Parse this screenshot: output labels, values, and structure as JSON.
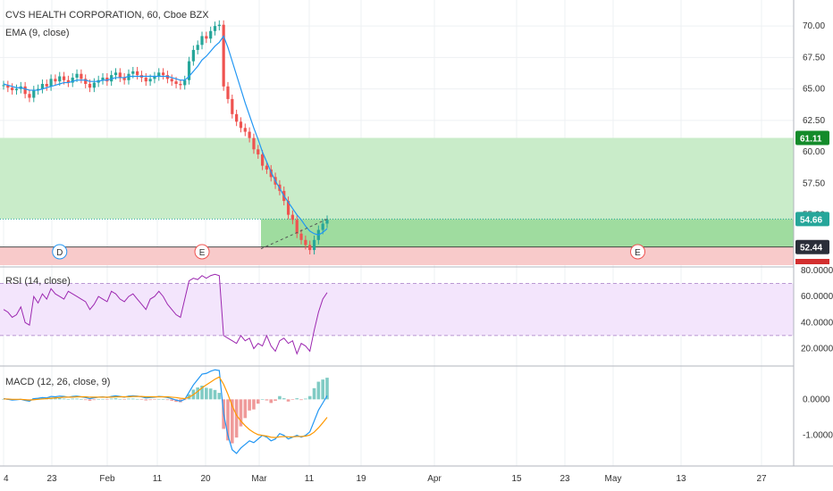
{
  "legend": {
    "symbol": "CVS HEALTH CORPORATION, 60, Cboe BZX",
    "ema": "EMA (9, close)",
    "rsi": "RSI (14, close)",
    "macd": "MACD (12, 26, close, 9)"
  },
  "colors": {
    "up": "#26a69a",
    "down": "#ef5350",
    "ema": "#2196f3",
    "profit_zone": "#c9ecc9",
    "profit_zone_dark": "#9fdc9f",
    "stop_zone": "#f8caca",
    "rsi_line": "#9c27b0",
    "rsi_band": "#f3e5fc",
    "macd_line": "#2196f3",
    "signal_line": "#ff9800",
    "tag_green": "#138b2a",
    "tag_teal": "#26a69a",
    "tag_dark": "#2a2e39"
  },
  "price_tags": [
    {
      "value": "61.11",
      "price": 61.11,
      "style": "green"
    },
    {
      "value": "54.66",
      "price": 54.66,
      "style": "teal"
    },
    {
      "value": "52.44",
      "price": 52.44,
      "style": "dark"
    }
  ],
  "events": [
    {
      "letter": "D",
      "x_index": 13
    },
    {
      "letter": "E",
      "x_index": 46
    },
    {
      "letter": "E",
      "x_index": 147
    }
  ],
  "chart_data": {
    "type": "line",
    "price_axis": {
      "ticks": [
        "70.00",
        "67.50",
        "65.00",
        "62.50",
        "60.00",
        "57.50",
        "55.00"
      ],
      "range": [
        51.0,
        71.5
      ]
    },
    "rsi_axis": {
      "ticks": [
        "80.0000",
        "60.0000",
        "40.0000",
        "20.0000"
      ],
      "range": [
        8,
        82
      ],
      "bands": [
        30,
        70
      ]
    },
    "macd_axis": {
      "ticks": [
        "0.0000",
        "-1.0000"
      ],
      "range": [
        -1.8,
        0.9
      ]
    },
    "x_axis": {
      "labels": [
        "4",
        "23",
        "Feb",
        "11",
        "20",
        "Mar",
        "11",
        "19",
        "Apr",
        "15",
        "23",
        "May",
        "13",
        "27"
      ]
    },
    "trade_zones": {
      "entry": 54.66,
      "target": 61.11,
      "stop": 52.44,
      "stop_low": 51.9
    },
    "close": [
      65.3,
      65.1,
      64.9,
      65.0,
      65.2,
      64.6,
      64.3,
      64.9,
      65.0,
      65.4,
      65.2,
      65.8,
      65.6,
      66.0,
      65.7,
      65.5,
      65.9,
      66.2,
      65.8,
      65.4,
      65.1,
      65.5,
      65.7,
      65.9,
      65.6,
      66.1,
      66.3,
      65.9,
      65.7,
      66.2,
      66.4,
      66.1,
      65.9,
      65.6,
      65.8,
      66.0,
      66.3,
      66.1,
      65.8,
      65.6,
      65.4,
      65.3,
      65.7,
      67.2,
      68.1,
      68.5,
      69.2,
      69.0,
      69.6,
      70.0,
      70.1,
      65.2,
      64.2,
      63.0,
      62.4,
      61.9,
      61.6,
      61.1,
      60.2,
      59.8,
      58.9,
      58.6,
      58.0,
      57.4,
      56.9,
      56.1,
      55.0,
      54.6,
      53.5,
      53.0,
      52.6,
      52.2,
      53.0,
      53.8,
      54.3,
      54.6
    ],
    "ema": [
      65.4,
      65.3,
      65.2,
      65.1,
      65.1,
      65.0,
      64.9,
      64.9,
      64.9,
      65.0,
      65.1,
      65.2,
      65.3,
      65.4,
      65.5,
      65.5,
      65.6,
      65.7,
      65.7,
      65.7,
      65.6,
      65.6,
      65.6,
      65.7,
      65.7,
      65.8,
      65.9,
      65.9,
      65.9,
      66.0,
      66.0,
      66.0,
      66.0,
      66.0,
      66.0,
      66.0,
      66.0,
      66.0,
      66.0,
      65.9,
      65.8,
      65.7,
      65.7,
      66.0,
      66.4,
      66.8,
      67.3,
      67.6,
      68.0,
      68.4,
      68.7,
      69.2,
      68.3,
      67.2,
      66.1,
      65.0,
      63.9,
      62.9,
      61.9,
      61.0,
      60.0,
      59.2,
      58.4,
      57.7,
      57.1,
      56.5,
      56.0,
      55.5,
      55.0,
      54.6,
      54.1,
      53.7,
      53.5,
      53.4,
      53.6,
      53.9
    ],
    "rsi": [
      50,
      48,
      44,
      46,
      52,
      40,
      38,
      60,
      55,
      62,
      58,
      66,
      62,
      60,
      58,
      64,
      62,
      60,
      58,
      56,
      50,
      54,
      60,
      58,
      56,
      64,
      62,
      58,
      56,
      60,
      62,
      58,
      54,
      50,
      58,
      60,
      64,
      60,
      54,
      50,
      46,
      44,
      58,
      72,
      74,
      73,
      76,
      74,
      76,
      77,
      76,
      30,
      28,
      26,
      24,
      30,
      26,
      28,
      20,
      24,
      22,
      30,
      22,
      18,
      26,
      28,
      24,
      26,
      16,
      24,
      22,
      18,
      34,
      48,
      58,
      63
    ],
    "macd": [
      0.02,
      0.0,
      -0.02,
      -0.01,
      0.0,
      -0.03,
      -0.05,
      0.02,
      0.03,
      0.05,
      0.04,
      0.08,
      0.07,
      0.09,
      0.08,
      0.06,
      0.08,
      0.09,
      0.07,
      0.05,
      0.02,
      0.04,
      0.06,
      0.07,
      0.05,
      0.08,
      0.1,
      0.08,
      0.06,
      0.09,
      0.1,
      0.09,
      0.07,
      0.04,
      0.05,
      0.06,
      0.08,
      0.07,
      0.05,
      0.02,
      -0.02,
      -0.05,
      0.0,
      0.2,
      0.4,
      0.55,
      0.7,
      0.72,
      0.78,
      0.82,
      0.8,
      -0.4,
      -1.0,
      -1.4,
      -1.5,
      -1.35,
      -1.25,
      -1.15,
      -1.2,
      -1.1,
      -1.0,
      -1.05,
      -1.15,
      -1.1,
      -0.95,
      -1.0,
      -1.1,
      -1.05,
      -1.0,
      -1.05,
      -1.0,
      -0.9,
      -0.6,
      -0.3,
      -0.1,
      0.1
    ],
    "signal": [
      0.01,
      0.01,
      0.0,
      0.0,
      0.0,
      -0.01,
      -0.02,
      -0.01,
      0.0,
      0.01,
      0.02,
      0.03,
      0.04,
      0.05,
      0.06,
      0.06,
      0.06,
      0.07,
      0.07,
      0.07,
      0.06,
      0.06,
      0.06,
      0.06,
      0.06,
      0.06,
      0.07,
      0.07,
      0.07,
      0.07,
      0.08,
      0.08,
      0.08,
      0.07,
      0.07,
      0.07,
      0.07,
      0.07,
      0.07,
      0.06,
      0.05,
      0.03,
      0.02,
      0.06,
      0.13,
      0.22,
      0.32,
      0.4,
      0.48,
      0.56,
      0.62,
      0.42,
      0.14,
      -0.18,
      -0.44,
      -0.6,
      -0.73,
      -0.84,
      -0.92,
      -0.98,
      -1.0,
      -1.02,
      -1.05,
      -1.06,
      -1.04,
      -1.03,
      -1.04,
      -1.04,
      -1.03,
      -1.03,
      -1.02,
      -0.99,
      -0.91,
      -0.79,
      -0.65,
      -0.5
    ]
  }
}
